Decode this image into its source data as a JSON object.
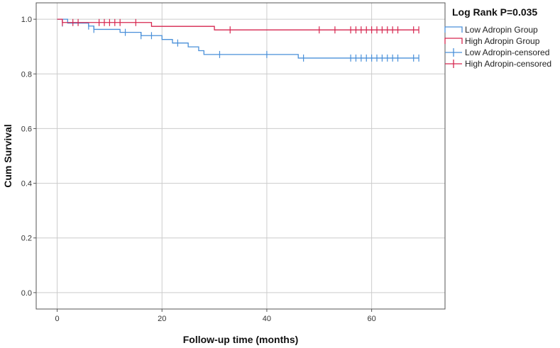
{
  "chart_data": {
    "type": "line",
    "subtype": "kaplan-meier",
    "title": "",
    "legend_title": "Log Rank P=0.035",
    "xlabel": "Follow-up time (months)",
    "ylabel": "Cum Survival",
    "xlim": [
      -4,
      74
    ],
    "ylim": [
      -0.06,
      1.06
    ],
    "x_ticks": [
      0,
      20,
      40,
      60
    ],
    "x_tick_labels": [
      "0",
      "20",
      "40",
      "60"
    ],
    "y_ticks": [
      0.0,
      0.2,
      0.4,
      0.6,
      0.8,
      1.0
    ],
    "y_tick_labels": [
      "0.0",
      "0.2",
      "0.4",
      "0.6",
      "0.8",
      "1.0"
    ],
    "grid": true,
    "legend_position": "top-right-outside",
    "series": [
      {
        "name": "Low Adropin Group",
        "color": "#4a90d9",
        "steps": [
          [
            0,
            1.0
          ],
          [
            2,
            0.986
          ],
          [
            6,
            0.975
          ],
          [
            7,
            0.963
          ],
          [
            12,
            0.952
          ],
          [
            16,
            0.94
          ],
          [
            20,
            0.926
          ],
          [
            22,
            0.913
          ],
          [
            25,
            0.899
          ],
          [
            27,
            0.885
          ],
          [
            28,
            0.871
          ],
          [
            46,
            0.858
          ],
          [
            69,
            0.858
          ]
        ],
        "censored": [
          [
            1,
            0.986
          ],
          [
            6,
            0.975
          ],
          [
            7,
            0.963
          ],
          [
            13,
            0.952
          ],
          [
            16,
            0.94
          ],
          [
            18,
            0.94
          ],
          [
            23,
            0.913
          ],
          [
            31,
            0.871
          ],
          [
            40,
            0.871
          ],
          [
            47,
            0.858
          ],
          [
            56,
            0.858
          ],
          [
            57,
            0.858
          ],
          [
            58,
            0.858
          ],
          [
            59,
            0.858
          ],
          [
            60,
            0.858
          ],
          [
            61,
            0.858
          ],
          [
            62,
            0.858
          ],
          [
            63,
            0.858
          ],
          [
            64,
            0.858
          ],
          [
            65,
            0.858
          ],
          [
            68,
            0.858
          ],
          [
            69,
            0.858
          ]
        ]
      },
      {
        "name": "High Adropin Group",
        "color": "#d6264f",
        "steps": [
          [
            0,
            1.0
          ],
          [
            1,
            0.988
          ],
          [
            18,
            0.974
          ],
          [
            30,
            0.961
          ],
          [
            69,
            0.961
          ]
        ],
        "censored": [
          [
            1,
            0.988
          ],
          [
            3,
            0.988
          ],
          [
            4,
            0.988
          ],
          [
            8,
            0.988
          ],
          [
            9,
            0.988
          ],
          [
            10,
            0.988
          ],
          [
            11,
            0.988
          ],
          [
            12,
            0.988
          ],
          [
            15,
            0.988
          ],
          [
            33,
            0.961
          ],
          [
            50,
            0.961
          ],
          [
            53,
            0.961
          ],
          [
            56,
            0.961
          ],
          [
            57,
            0.961
          ],
          [
            58,
            0.961
          ],
          [
            59,
            0.961
          ],
          [
            60,
            0.961
          ],
          [
            61,
            0.961
          ],
          [
            62,
            0.961
          ],
          [
            63,
            0.961
          ],
          [
            64,
            0.961
          ],
          [
            65,
            0.961
          ],
          [
            68,
            0.961
          ],
          [
            69,
            0.961
          ]
        ]
      }
    ],
    "legend_entries": [
      {
        "label": "Low Adropin Group",
        "series": 0,
        "kind": "step"
      },
      {
        "label": "High Adropin Group",
        "series": 1,
        "kind": "step"
      },
      {
        "label": "Low Adropin-censored",
        "series": 0,
        "kind": "censor"
      },
      {
        "label": "High Adropin-censored",
        "series": 1,
        "kind": "censor"
      }
    ],
    "colors": {
      "grid": "#cccccc",
      "axis": "#555555",
      "background": "#ffffff"
    }
  }
}
